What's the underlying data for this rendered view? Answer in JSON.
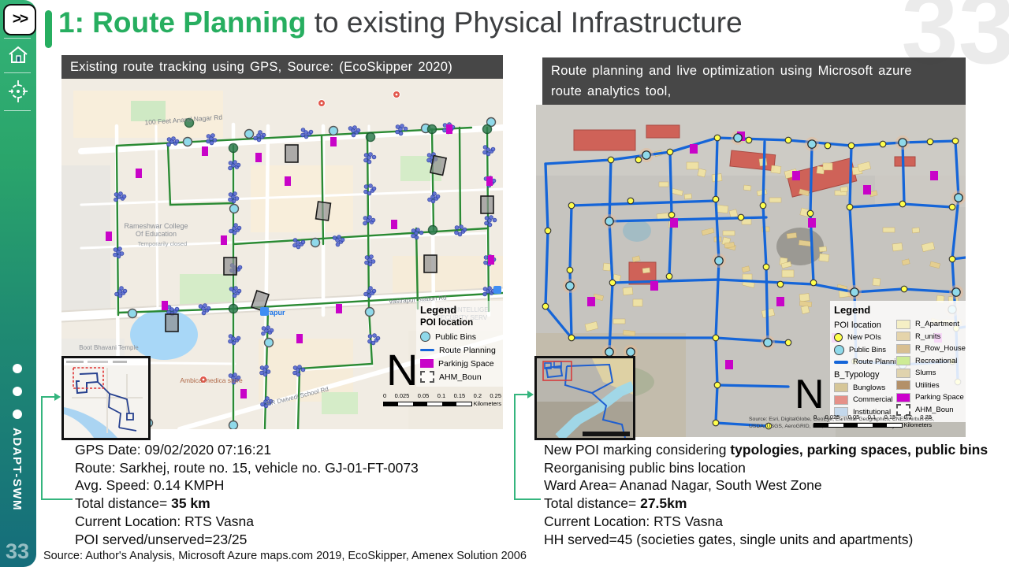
{
  "slide": {
    "number": "33",
    "watermark": "33",
    "title": {
      "highlight": "1: Route Planning",
      "rest": " to existing Physical Infrastructure"
    },
    "source_line": "Source: Author's Analysis, Microsoft Azure maps.com 2019, EcoSkipper, Amenex Solution 2006"
  },
  "sidebar": {
    "skip_label": ">>",
    "brand": "ADAPT-SWM"
  },
  "left_map": {
    "header": "Existing route tracking using GPS, Source: (EcoSkipper 2020)",
    "labels": [
      "100 Feet Anand Nagar Rd",
      "Rameshwar College",
      "Of Education",
      "Temporarily closed",
      "Ambica medica store",
      "Boot Bhavani Temple",
      "Vastrapur Station Rd",
      "ARISE INTELLIGE",
      "SECURITY SERV",
      "RR Dwivedi School Rd",
      "rapur"
    ],
    "legend": {
      "title": "Legend",
      "subtitle": "POI location",
      "items": [
        {
          "label": "Public Bins",
          "swatch": "circle-cyan"
        },
        {
          "label": "Route Planning",
          "swatch": "line-blue"
        },
        {
          "label": "Parkinjg Space",
          "swatch": "rect-magenta"
        },
        {
          "label": "AHM_Boun",
          "swatch": "dashed"
        }
      ]
    },
    "north_label": "N",
    "scale": {
      "ticks": [
        "0",
        "0.025",
        "0.05",
        "0.1",
        "0.15",
        "0.2",
        "0.25"
      ],
      "unit": "Kilometers"
    },
    "info_lines": [
      [
        {
          "t": "GPS Date: 09/02/2020 07:16:21"
        }
      ],
      [
        {
          "t": "Route: Sarkhej, route no. 15, vehicle no. GJ-01-FT-0073"
        }
      ],
      [
        {
          "t": "Avg. Speed: 0.14 KMPH"
        }
      ],
      [
        {
          "t": "Total distance= "
        },
        {
          "t": "35 km",
          "b": true
        }
      ],
      [
        {
          "t": "Current Location: RTS Vasna"
        }
      ],
      [
        {
          "t": "POI served/unserved=23/25"
        }
      ]
    ]
  },
  "right_map": {
    "header_line1": "Route planning and live optimization using Microsoft azure",
    "header_line2": "route analytics tool,",
    "legend": {
      "title": "Legend",
      "col1": [
        {
          "label": "POI location",
          "type": "heading"
        },
        {
          "label": "New POIs",
          "swatch": "circle-yellow"
        },
        {
          "label": "Public Bins",
          "swatch": "circle-cyan"
        },
        {
          "label": "Route Planning",
          "swatch": "line-blue"
        },
        {
          "label": "B_Typology",
          "type": "heading"
        },
        {
          "label": "Bunglows",
          "swatch": "#d6c698"
        },
        {
          "label": "Commercial",
          "swatch": "#e59088"
        },
        {
          "label": "Institutional",
          "swatch": "#c4d8ec"
        }
      ],
      "col2": [
        {
          "label": "R_Apartment",
          "swatch": "#f5efc5"
        },
        {
          "label": "R_units",
          "swatch": "#e5d4ab"
        },
        {
          "label": "R_Row_House",
          "swatch": "#d8bf92"
        },
        {
          "label": "Recreational",
          "swatch": "#cdeb95"
        },
        {
          "label": "Slums",
          "swatch": "#e0d3ae"
        },
        {
          "label": "Utilities",
          "swatch": "#b39069"
        },
        {
          "label": "Parking Space",
          "swatch": "#cc00cc"
        },
        {
          "label": "AHM_Boun",
          "swatch": "dashed"
        }
      ]
    },
    "north_label": "N",
    "scale": {
      "ticks": [
        "0",
        "0.025",
        "0.05",
        "0.1",
        "0.15",
        "0.2",
        "0.25"
      ],
      "unit": "Kilometers"
    },
    "esri_line1": "Source: Esri, DigitalGlobe, GeoEye, Earthstar Geographics, CNES/Airbus DS,",
    "esri_line2": "USDA, USGS, AeroGRID, IGN, and the GIS User Community",
    "info_lines": [
      [
        {
          "t": "New POI marking considering "
        },
        {
          "t": "typologies, parking spaces, public bins",
          "b": true
        }
      ],
      [
        {
          "t": "Reorganising public bins location"
        }
      ],
      [
        {
          "t": "Ward Area= Ananad Nagar, South West Zone"
        }
      ],
      [
        {
          "t": "Total distance= "
        },
        {
          "t": "27.5km",
          "b": true
        }
      ],
      [
        {
          "t": "Current Location: RTS Vasna"
        }
      ],
      [
        {
          "t": "HH served=45 (societies gates, single units and apartments)"
        }
      ]
    ]
  }
}
